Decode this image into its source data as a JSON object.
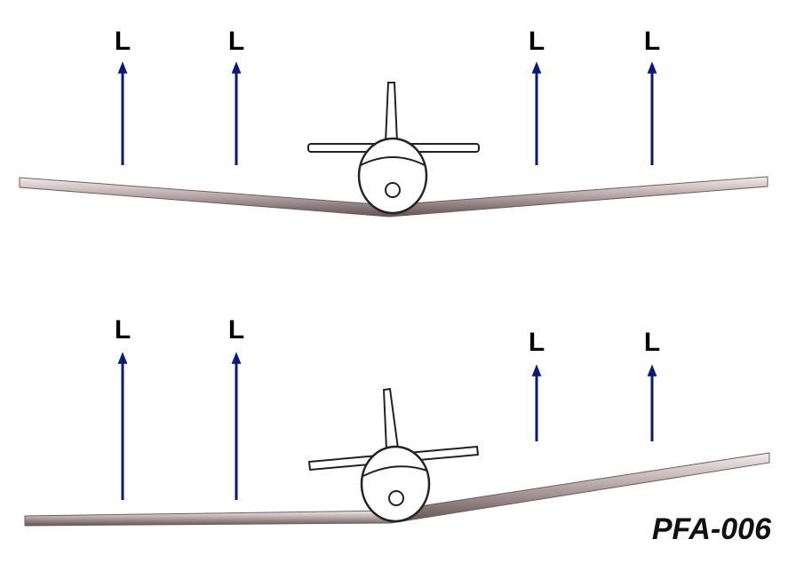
{
  "lift_label": "L",
  "figure_id": "PFA-006",
  "colors": {
    "arrow": "#0a1a7a",
    "wing_light": "#e8dfe0",
    "wing_dark": "#6e5e60",
    "outline": "#222222"
  },
  "scenes": [
    {
      "state": "level",
      "lift_vectors": [
        {
          "side": "left",
          "relative_length": 1.0
        },
        {
          "side": "left",
          "relative_length": 1.0
        },
        {
          "side": "right",
          "relative_length": 1.0
        },
        {
          "side": "right",
          "relative_length": 1.0
        }
      ]
    },
    {
      "state": "banked",
      "lift_vectors": [
        {
          "side": "left",
          "relative_length": 1.0
        },
        {
          "side": "left",
          "relative_length": 1.0
        },
        {
          "side": "right",
          "relative_length": 0.5
        },
        {
          "side": "right",
          "relative_length": 0.5
        }
      ]
    }
  ]
}
